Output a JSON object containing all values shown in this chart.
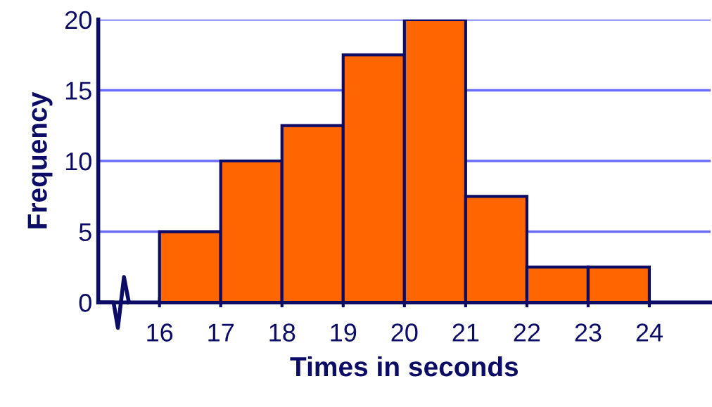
{
  "chart_data": {
    "type": "histogram",
    "xlabel": "Times in seconds",
    "ylabel": "Frequency",
    "bins": [
      16,
      17,
      18,
      19,
      20,
      21,
      22,
      23,
      24
    ],
    "values": [
      5,
      10,
      12.5,
      17.5,
      20,
      7.5,
      2.5,
      2.5
    ],
    "color": "#ff6600",
    "xlim": [
      15,
      25
    ],
    "xticks": [
      16,
      17,
      18,
      19,
      20,
      21,
      22,
      23,
      24
    ],
    "ylim": [
      0,
      20
    ],
    "yticks": [
      0,
      5,
      10,
      15,
      20
    ],
    "grid": "y"
  }
}
